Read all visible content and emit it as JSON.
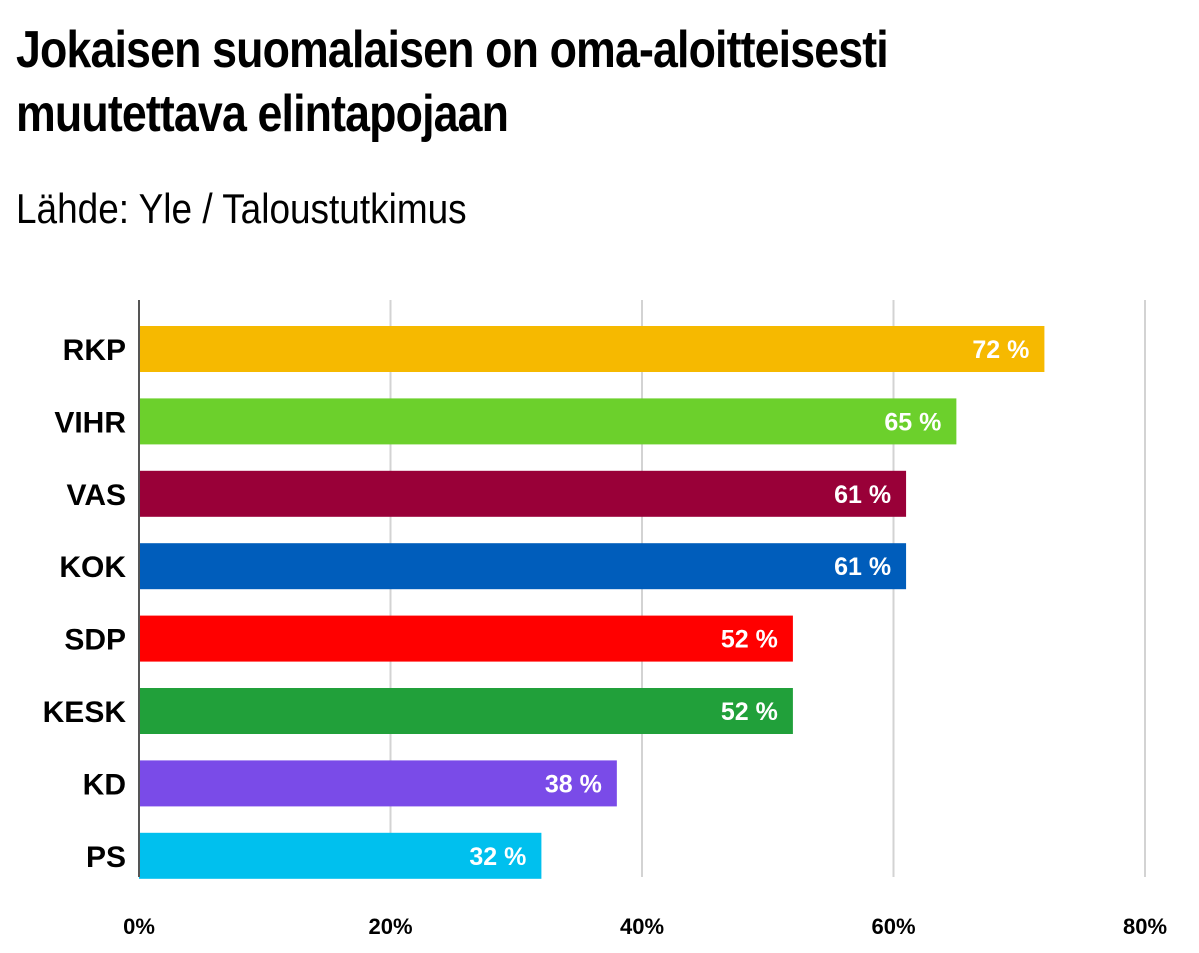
{
  "header": {
    "title_line1": "Jokaisen suomalaisen on oma-aloitteisesti",
    "title_line2": "muutettava elintapojaan",
    "subtitle": "Lähde: Yle / Taloustutkimus"
  },
  "chart_data": {
    "type": "bar",
    "orientation": "horizontal",
    "title": "Jokaisen suomalaisen on oma-aloitteisesti muutettava elintapojaan",
    "subtitle": "Lähde: Yle / Taloustutkimus",
    "categories": [
      "RKP",
      "VIHR",
      "VAS",
      "KOK",
      "SDP",
      "KESK",
      "KD",
      "PS"
    ],
    "values": [
      72,
      65,
      61,
      61,
      52,
      52,
      38,
      32
    ],
    "value_labels": [
      "72 %",
      "65 %",
      "61 %",
      "61 %",
      "52 %",
      "52 %",
      "38 %",
      "32 %"
    ],
    "colors": [
      "#f6b900",
      "#6cd02c",
      "#990038",
      "#005dbb",
      "#ff0000",
      "#21a03a",
      "#7a4be8",
      "#00c0ee"
    ],
    "xlim": [
      0,
      80
    ],
    "xticks": [
      0,
      20,
      40,
      60,
      80
    ],
    "xtick_labels": [
      "0%",
      "20%",
      "40%",
      "60%",
      "80%"
    ],
    "xlabel": "",
    "ylabel": "",
    "grid": "vertical",
    "legend": "none"
  }
}
